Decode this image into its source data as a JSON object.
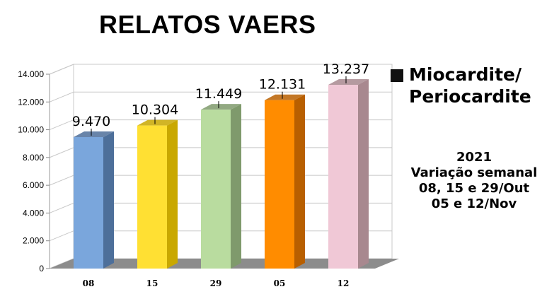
{
  "header": {
    "title": "RELATOS VAERS"
  },
  "legend": {
    "label": "Miocardite/\nPeriocardite",
    "swatch_color": "#111111"
  },
  "note": {
    "lines": [
      "2021",
      "Variação semanal",
      "08, 15 e 29/Out",
      "05 e 12/Nov"
    ]
  },
  "chart_data": {
    "type": "bar",
    "title": "RELATOS VAERS",
    "categories": [
      "08",
      "15",
      "29",
      "05",
      "12"
    ],
    "values": [
      9470,
      10304,
      11449,
      12131,
      13237
    ],
    "data_labels": [
      "9.470",
      "10.304",
      "11.449",
      "12.131",
      "13.237"
    ],
    "ylim": [
      0,
      14000
    ],
    "yticks": [
      0,
      2000,
      4000,
      6000,
      8000,
      10000,
      12000,
      14000
    ],
    "ytick_labels": [
      "0",
      "2.000",
      "4.000",
      "6.000",
      "8.000",
      "10.000",
      "12.000",
      "14.000"
    ],
    "xlabel": "",
    "ylabel": "",
    "grid": true,
    "legend_position": "right",
    "series": [
      {
        "name": "Miocardite/ Periocardite",
        "values": [
          9470,
          10304,
          11449,
          12131,
          13237
        ]
      }
    ],
    "bar_colors": [
      "#7aa6dc",
      "#ffe033",
      "#b9dc9f",
      "#ff8c00",
      "#f0c8d6"
    ],
    "bar_side_colors": [
      "#4d6f9a",
      "#c9a800",
      "#7f9a6c",
      "#b85f00",
      "#a8888f"
    ]
  }
}
